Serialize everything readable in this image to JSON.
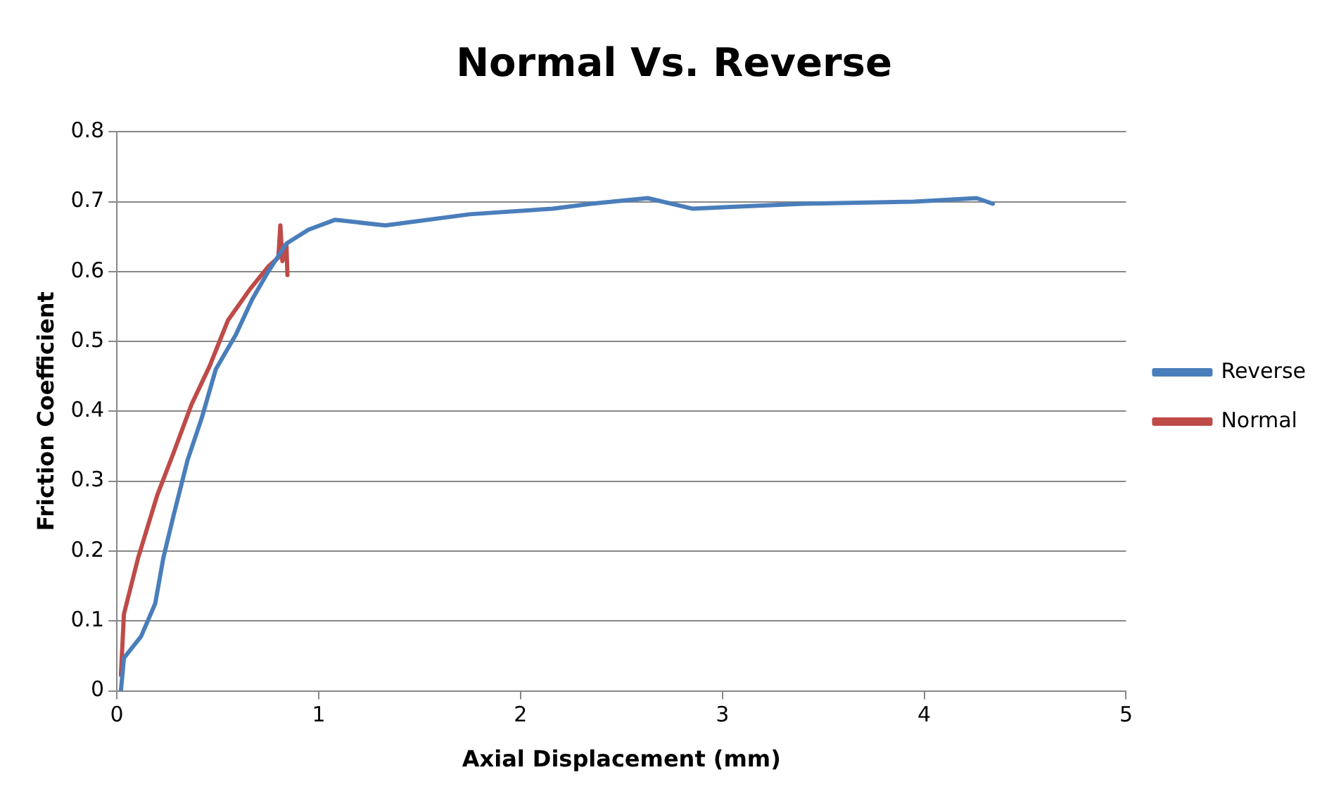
{
  "chart_data": {
    "type": "line",
    "title": "Normal Vs. Reverse",
    "xlabel": "Axial Displacement (mm)",
    "ylabel": "Friction Coefficient",
    "xlim": [
      0,
      5
    ],
    "xticks": [
      0,
      1,
      2,
      3,
      4,
      5
    ],
    "ylim": [
      0,
      0.8
    ],
    "yticks": [
      0,
      0.1,
      0.2,
      0.3,
      0.4,
      0.5,
      0.6,
      0.7,
      0.8
    ],
    "grid": "y",
    "legend": "right",
    "marker": "none",
    "line_style": "solid",
    "series": [
      {
        "name": "Reverse",
        "color": "#4a7ebb",
        "x": [
          0.02,
          0.035,
          0.12,
          0.19,
          0.23,
          0.28,
          0.35,
          0.42,
          0.49,
          0.59,
          0.67,
          0.75,
          0.84,
          0.95,
          1.08,
          1.33,
          1.75,
          2.16,
          2.35,
          2.63,
          2.85,
          3.4,
          3.95,
          4.26,
          4.34
        ],
        "values": [
          0.0,
          0.047,
          0.078,
          0.125,
          0.19,
          0.25,
          0.33,
          0.39,
          0.46,
          0.51,
          0.56,
          0.6,
          0.64,
          0.66,
          0.674,
          0.666,
          0.682,
          0.69,
          0.697,
          0.705,
          0.69,
          0.697,
          0.7,
          0.705,
          0.697
        ]
      },
      {
        "name": "Normal",
        "color": "#be4b48",
        "x": [
          0.02,
          0.035,
          0.105,
          0.2,
          0.28,
          0.37,
          0.46,
          0.55,
          0.66,
          0.75,
          0.8,
          0.81,
          0.82,
          0.84,
          0.845
        ],
        "values": [
          0.023,
          0.11,
          0.19,
          0.28,
          0.34,
          0.41,
          0.465,
          0.53,
          0.575,
          0.607,
          0.62,
          0.666,
          0.615,
          0.638,
          0.595
        ]
      }
    ]
  }
}
